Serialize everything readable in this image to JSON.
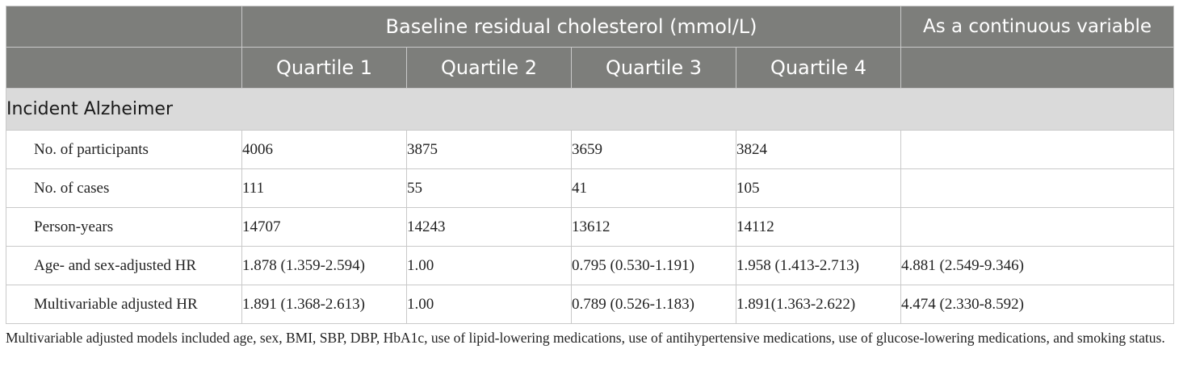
{
  "header": {
    "group_title": "Baseline residual cholesterol (mmol/L)",
    "continuous_title": "As a continuous variable",
    "quartiles": [
      "Quartile 1",
      "Quartile 2",
      "Quartile 3",
      "Quartile 4"
    ]
  },
  "section": {
    "title": "Incident Alzheimer"
  },
  "rows": [
    {
      "label": "No. of participants",
      "values": [
        "4006",
        "3875",
        "3659",
        "3824",
        ""
      ]
    },
    {
      "label": "No. of cases",
      "values": [
        "111",
        "55",
        "41",
        "105",
        ""
      ]
    },
    {
      "label": "Person-years",
      "values": [
        "14707",
        "14243",
        "13612",
        "14112",
        ""
      ]
    },
    {
      "label": "Age- and sex-adjusted HR",
      "values": [
        "1.878 (1.359-2.594)",
        "1.00",
        "0.795 (0.530-1.191)",
        "1.958 (1.413-2.713)",
        "4.881 (2.549-9.346)"
      ]
    },
    {
      "label": "Multivariable adjusted HR",
      "values": [
        "1.891 (1.368-2.613)",
        "1.00",
        "0.789 (0.526-1.183)",
        "1.891(1.363-2.622)",
        "4.474 (2.330-8.592)"
      ]
    }
  ],
  "footnote": "Multivariable adjusted models included age, sex, BMI, SBP, DBP, HbA1c, use of lipid-lowering medications, use of antihypertensive medications, use of glucose-lowering medications, and smoking status."
}
